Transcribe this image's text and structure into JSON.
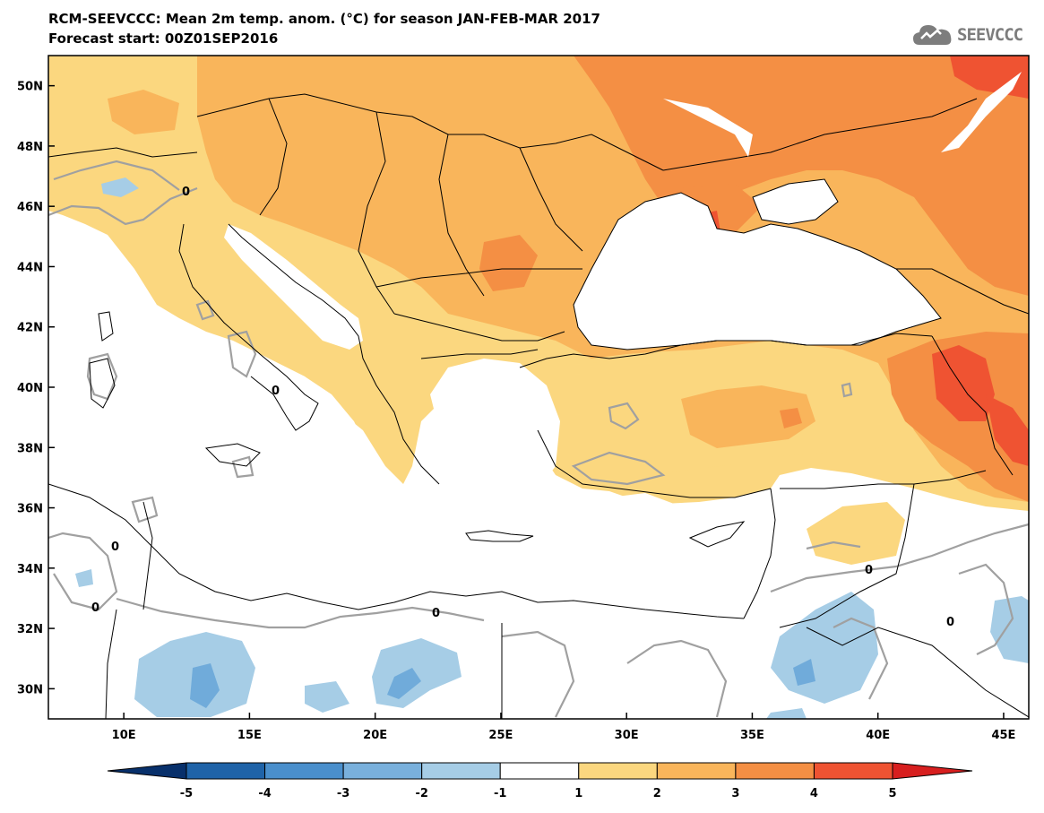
{
  "title": {
    "line1": "RCM-SEEVCCC: Mean 2m temp. anom. (°C) for season JAN-FEB-MAR 2017",
    "line2": "Forecast start: 00Z01SEP2016"
  },
  "logo": {
    "text": "SEEVCCC",
    "icon": "cloud-icon"
  },
  "map": {
    "lon_range": [
      7,
      46
    ],
    "lat_range": [
      29,
      51
    ],
    "lon_ticks": [
      "10E",
      "15E",
      "20E",
      "25E",
      "30E",
      "35E",
      "40E",
      "45E"
    ],
    "lat_ticks": [
      "30N",
      "32N",
      "34N",
      "36N",
      "38N",
      "40N",
      "42N",
      "44N",
      "46N",
      "48N",
      "50N"
    ],
    "contour_label": "0",
    "colors": {
      "land_neutral": "#ffffff",
      "sea": "#ffffff",
      "warm_1_2": "#fbd77f",
      "warm_2_3": "#f9b55b",
      "warm_3_4": "#f48f44",
      "warm_4_5": "#ef5332",
      "cool_1_2": "#a6cde6",
      "cool_2_3": "#70abda",
      "zero_contour": "#a0a0a0",
      "borders": "#000000"
    }
  },
  "colorbar": {
    "labels": [
      "-5",
      "-4",
      "-3",
      "-2",
      "-1",
      "1",
      "2",
      "3",
      "4",
      "5"
    ],
    "colors": [
      "#08306b",
      "#1f63a8",
      "#4a8fcc",
      "#79b0dc",
      "#a6cde6",
      "#ffffff",
      "#fbd77f",
      "#f9b55b",
      "#f48f44",
      "#ef5332",
      "#d71f1f"
    ]
  }
}
